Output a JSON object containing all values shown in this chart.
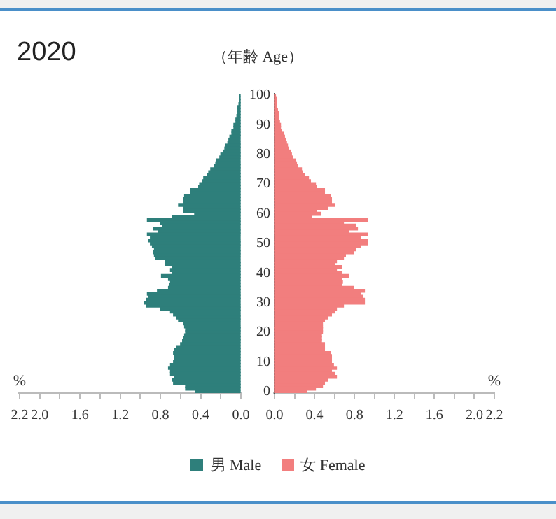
{
  "chart_data": [
    {
      "type": "bar",
      "orientation": "horizontal",
      "title": "2020",
      "xlabel": "%",
      "tick_labels": "x",
      "legend": "bottom",
      "categories": [
        "100",
        null,
        null,
        null,
        null,
        null,
        null,
        null,
        null,
        null,
        "90",
        null,
        null,
        null,
        null,
        null,
        null,
        null,
        null,
        null,
        "80",
        null,
        null,
        null,
        null,
        null,
        null,
        null,
        null,
        null,
        "70",
        null,
        null,
        null,
        null,
        null,
        null,
        null,
        null,
        null,
        "60",
        null,
        null,
        null,
        null,
        null,
        null,
        null,
        null,
        null,
        "50",
        null,
        null,
        null,
        null,
        null,
        null,
        null,
        null,
        null,
        "40",
        null,
        null,
        null,
        null,
        null,
        null,
        null,
        null,
        null,
        "30",
        null,
        null,
        null,
        null,
        null,
        null,
        null,
        null,
        null,
        "20",
        null,
        null,
        null,
        null,
        null,
        null,
        null,
        null,
        null,
        "10",
        null,
        null,
        null,
        null,
        null,
        null,
        null,
        null,
        null,
        "0"
      ],
      "xlim": [
        2.2,
        0
      ],
      "xticks": [
        {
          "value": 2.2,
          "label": "2.2"
        },
        {
          "value": 2.0,
          "label": "2.0"
        },
        {
          "value": 1.8,
          "label": null
        },
        {
          "value": 1.6,
          "label": "1.6"
        },
        {
          "value": 1.4,
          "label": null
        },
        {
          "value": 1.2,
          "label": "1.2"
        },
        {
          "value": 1.0,
          "label": null
        },
        {
          "value": 0.8,
          "label": "0.8"
        },
        {
          "value": 0.6,
          "label": null
        },
        {
          "value": 0.4,
          "label": "0.4"
        },
        {
          "value": 0.2,
          "label": null
        },
        {
          "value": 0,
          "label": "0.0"
        }
      ],
      "series": [
        {
          "name": "男 Male",
          "color": "#2e7f7b",
          "values": [
            0.01,
            0.01,
            0.01,
            0.02,
            0.03,
            0.03,
            0.03,
            0.04,
            0.05,
            0.05,
            0.07,
            0.07,
            0.09,
            0.09,
            0.11,
            0.12,
            0.13,
            0.15,
            0.16,
            0.17,
            0.2,
            0.21,
            0.24,
            0.25,
            0.26,
            0.3,
            0.32,
            0.33,
            0.37,
            0.38,
            0.41,
            0.42,
            0.5,
            0.5,
            0.56,
            0.57,
            0.57,
            0.62,
            0.57,
            0.57,
            0.46,
            0.68,
            0.93,
            0.8,
            0.78,
            0.87,
            0.82,
            0.93,
            0.9,
            0.92,
            0.9,
            0.88,
            0.86,
            0.87,
            0.86,
            0.85,
            0.75,
            0.75,
            0.68,
            0.7,
            0.68,
            0.79,
            0.72,
            0.7,
            0.71,
            0.72,
            0.83,
            0.93,
            0.92,
            0.94,
            0.96,
            0.94,
            0.8,
            0.7,
            0.67,
            0.64,
            0.62,
            0.57,
            0.56,
            0.55,
            0.55,
            0.56,
            0.57,
            0.58,
            0.6,
            0.64,
            0.66,
            0.67,
            0.66,
            0.66,
            0.67,
            0.7,
            0.72,
            0.7,
            0.7,
            0.66,
            0.68,
            0.67,
            0.55,
            0.55,
            0.45
          ]
        }
      ]
    },
    {
      "type": "bar",
      "orientation": "horizontal",
      "ylabel": "（年齢 Age）",
      "xlabel": "%",
      "legend": "bottom",
      "categories": [
        "100",
        null,
        null,
        null,
        null,
        null,
        null,
        null,
        null,
        null,
        "90",
        null,
        null,
        null,
        null,
        null,
        null,
        null,
        null,
        null,
        "80",
        null,
        null,
        null,
        null,
        null,
        null,
        null,
        null,
        null,
        "70",
        null,
        null,
        null,
        null,
        null,
        null,
        null,
        null,
        null,
        "60",
        null,
        null,
        null,
        null,
        null,
        null,
        null,
        null,
        null,
        "50",
        null,
        null,
        null,
        null,
        null,
        null,
        null,
        null,
        null,
        "40",
        null,
        null,
        null,
        null,
        null,
        null,
        null,
        null,
        null,
        "30",
        null,
        null,
        null,
        null,
        null,
        null,
        null,
        null,
        null,
        "20",
        null,
        null,
        null,
        null,
        null,
        null,
        null,
        null,
        null,
        "10",
        null,
        null,
        null,
        null,
        null,
        null,
        null,
        null,
        null,
        "0"
      ],
      "xlim": [
        0,
        2.2
      ],
      "xticks": [
        {
          "value": 0,
          "label": "0.0"
        },
        {
          "value": 0.2,
          "label": null
        },
        {
          "value": 0.4,
          "label": "0.4"
        },
        {
          "value": 0.6,
          "label": null
        },
        {
          "value": 0.8,
          "label": "0.8"
        },
        {
          "value": 1.0,
          "label": null
        },
        {
          "value": 1.2,
          "label": "1.2"
        },
        {
          "value": 1.4,
          "label": null
        },
        {
          "value": 1.6,
          "label": "1.6"
        },
        {
          "value": 1.8,
          "label": null
        },
        {
          "value": 2.0,
          "label": "2.0"
        },
        {
          "value": 2.2,
          "label": "2.2"
        }
      ],
      "series": [
        {
          "name": "女 Female",
          "color": "#f27e7e",
          "values": [
            0.01,
            0.02,
            0.02,
            0.02,
            0.02,
            0.03,
            0.04,
            0.04,
            0.04,
            0.05,
            0.06,
            0.06,
            0.07,
            0.09,
            0.1,
            0.11,
            0.12,
            0.13,
            0.14,
            0.16,
            0.17,
            0.18,
            0.21,
            0.22,
            0.23,
            0.27,
            0.28,
            0.3,
            0.34,
            0.36,
            0.41,
            0.42,
            0.5,
            0.5,
            0.56,
            0.57,
            0.57,
            0.6,
            0.53,
            0.42,
            0.46,
            0.37,
            0.93,
            0.69,
            0.81,
            0.83,
            0.74,
            0.93,
            0.86,
            0.93,
            0.93,
            0.86,
            0.81,
            0.79,
            0.71,
            0.69,
            0.62,
            0.6,
            0.67,
            0.62,
            0.67,
            0.74,
            0.67,
            0.68,
            0.67,
            0.79,
            0.9,
            0.86,
            0.88,
            0.9,
            0.9,
            0.69,
            0.62,
            0.6,
            0.57,
            0.53,
            0.5,
            0.48,
            0.48,
            0.48,
            0.48,
            0.47,
            0.47,
            0.47,
            0.5,
            0.5,
            0.5,
            0.56,
            0.57,
            0.57,
            0.57,
            0.59,
            0.62,
            0.57,
            0.6,
            0.62,
            0.53,
            0.5,
            0.48,
            0.41,
            0.32
          ]
        }
      ]
    }
  ]
}
